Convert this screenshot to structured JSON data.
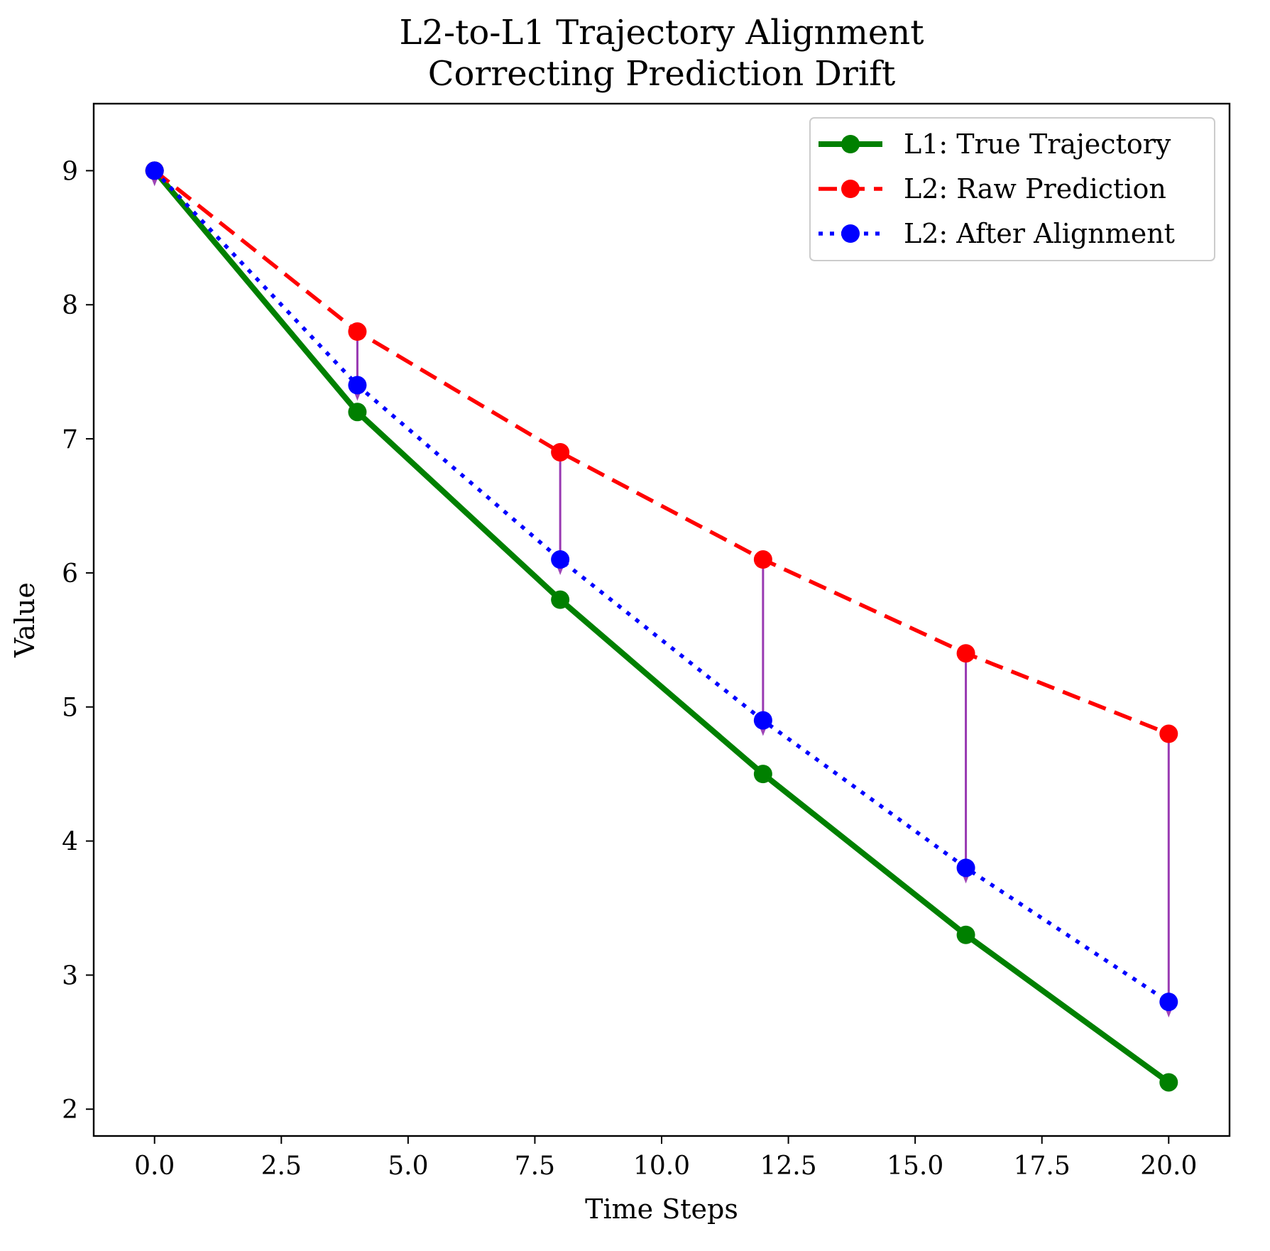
{
  "chart_data": {
    "type": "line",
    "title": "L2-to-L1 Trajectory Alignment",
    "subtitle": "Correcting Prediction Drift",
    "xlabel": "Time Steps",
    "ylabel": "Value",
    "xlim": [
      -1.2,
      21.2
    ],
    "ylim": [
      1.8,
      9.5
    ],
    "x_ticks": [
      0.0,
      2.5,
      5.0,
      7.5,
      10.0,
      12.5,
      15.0,
      17.5,
      20.0
    ],
    "x_tick_labels": [
      "0.0",
      "2.5",
      "5.0",
      "7.5",
      "10.0",
      "12.5",
      "15.0",
      "17.5",
      "20.0"
    ],
    "y_ticks": [
      2,
      3,
      4,
      5,
      6,
      7,
      8,
      9
    ],
    "y_tick_labels": [
      "2",
      "3",
      "4",
      "5",
      "6",
      "7",
      "8",
      "9"
    ],
    "grid": false,
    "legend_position": "top-right",
    "x": [
      0,
      4,
      8,
      12,
      16,
      20
    ],
    "series": [
      {
        "name": "L1: True Trajectory",
        "values": [
          9.0,
          7.2,
          5.8,
          4.5,
          3.3,
          2.2
        ],
        "color": "#008000",
        "style": "solid"
      },
      {
        "name": "L2: Raw Prediction",
        "values": [
          9.0,
          7.8,
          6.9,
          6.1,
          5.4,
          4.8
        ],
        "color": "#ff0000",
        "style": "dashed"
      },
      {
        "name": "L2: After Alignment",
        "values": [
          9.0,
          7.4,
          6.1,
          4.9,
          3.8,
          2.8
        ],
        "color": "#0000ff",
        "style": "dotted"
      }
    ],
    "correction_arrows": {
      "color": "#8e24aa",
      "from_series": "L2: Raw Prediction",
      "to_series": "L2: After Alignment"
    }
  }
}
